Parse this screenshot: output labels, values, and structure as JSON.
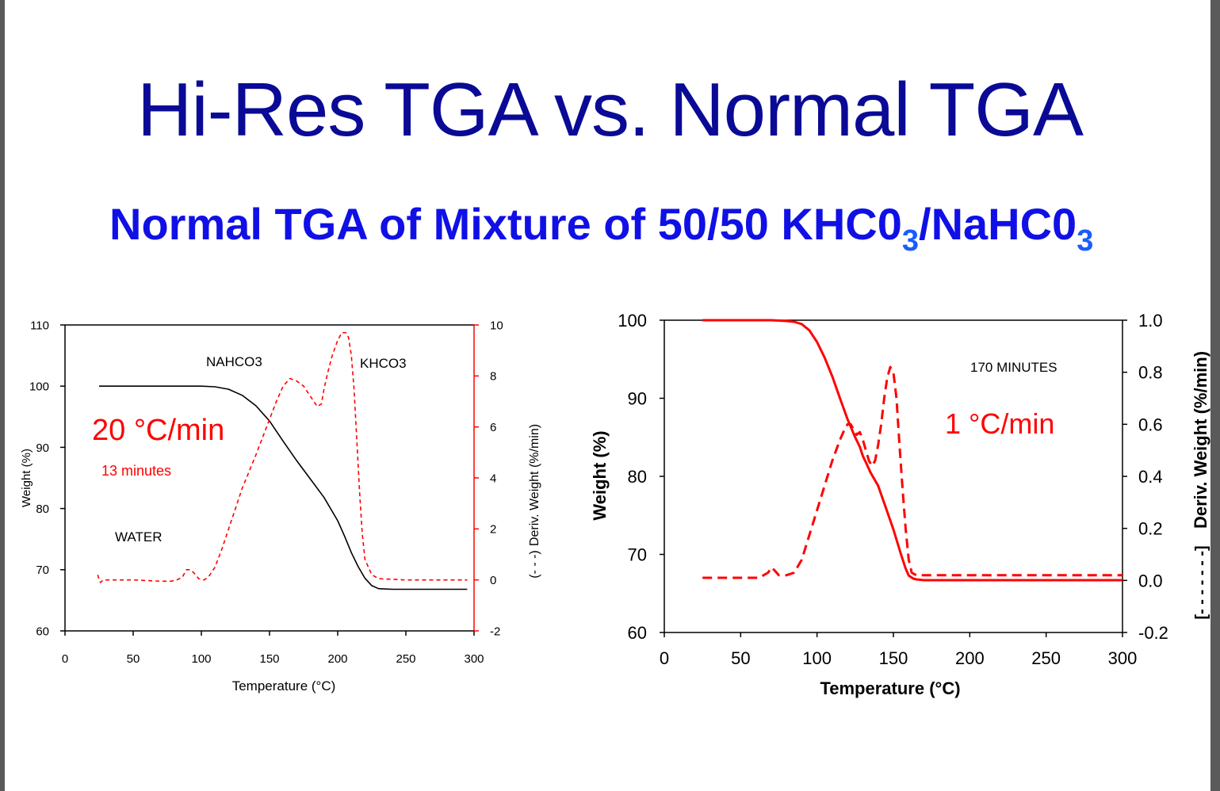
{
  "title": "Hi-Res TGA vs. Normal TGA",
  "subtitle": {
    "main": "Normal TGA of Mixture of 50/50 KHC0",
    "sub1": "3",
    "mid": "/NaHC0",
    "sub2": "3"
  },
  "colors": {
    "title": "#0a0a96",
    "subtitle": "#1010e6",
    "deriv": "#ff0000",
    "weight_left": "#000000",
    "weight_right": "#ff0000"
  },
  "chart_data": [
    {
      "type": "line",
      "xlabel": "Temperature (°C)",
      "ylabel": "Weight (%)",
      "y2label": "Deriv. Weight (%/min)",
      "xlim": [
        0,
        300
      ],
      "ylim": [
        60,
        110
      ],
      "y2lim": [
        -2,
        10
      ],
      "xticks": [
        "0",
        "50",
        "100",
        "150",
        "200",
        "250",
        "300"
      ],
      "yticks": [
        "60",
        "70",
        "80",
        "90",
        "100",
        "110"
      ],
      "y2ticks": [
        "-2",
        "0",
        "2",
        "4",
        "6",
        "8",
        "10"
      ],
      "annotations": {
        "rate": "20 °C/min",
        "time": "13 minutes",
        "water": "WATER",
        "nahco3": "NAHCO3",
        "khco3": "KHCO3"
      },
      "series": [
        {
          "axis": "left",
          "style": "solid",
          "x": [
            25,
            50,
            80,
            100,
            110,
            120,
            130,
            140,
            150,
            160,
            170,
            180,
            190,
            200,
            205,
            210,
            215,
            220,
            225,
            230,
            240,
            260,
            295
          ],
          "y": [
            100,
            100,
            100,
            100,
            99.9,
            99.5,
            98.5,
            96.8,
            94.3,
            91.0,
            87.8,
            84.8,
            81.8,
            78.0,
            75.5,
            72.8,
            70.5,
            68.6,
            67.4,
            66.9,
            66.8,
            66.8,
            66.8
          ]
        },
        {
          "axis": "right",
          "style": "dashed",
          "x": [
            24,
            25,
            26,
            28,
            30,
            50,
            70,
            78,
            82,
            86,
            89,
            92,
            95,
            98,
            102,
            105,
            110,
            115,
            120,
            130,
            140,
            150,
            155,
            160,
            165,
            170,
            175,
            180,
            185,
            188,
            190,
            193,
            196,
            200,
            203,
            206,
            208,
            210,
            212,
            214,
            216,
            218,
            220,
            225,
            230,
            250,
            270,
            295
          ],
          "y": [
            0.2,
            0.0,
            -0.1,
            0.0,
            0.0,
            0.0,
            -0.05,
            -0.05,
            0.0,
            0.1,
            0.4,
            0.4,
            0.25,
            0.05,
            0.0,
            0.1,
            0.5,
            1.2,
            2.0,
            3.6,
            4.9,
            6.3,
            7.0,
            7.6,
            7.9,
            7.8,
            7.6,
            7.2,
            6.8,
            6.9,
            7.5,
            8.2,
            8.8,
            9.4,
            9.7,
            9.7,
            9.5,
            8.8,
            7.5,
            5.5,
            3.5,
            1.8,
            0.8,
            0.2,
            0.05,
            0.0,
            0.0,
            0.0
          ]
        }
      ]
    },
    {
      "type": "line",
      "xlabel": "Temperature (°C)",
      "ylabel": "Weight (%)",
      "y2label": "Deriv. Weight (%/min)",
      "xlim": [
        0,
        300
      ],
      "ylim": [
        60,
        100
      ],
      "y2lim": [
        -0.2,
        1.0
      ],
      "xticks": [
        "0",
        "50",
        "100",
        "150",
        "200",
        "250",
        "300"
      ],
      "yticks": [
        "60",
        "70",
        "80",
        "90",
        "100"
      ],
      "y2ticks": [
        "-0.2",
        "0.0",
        "0.2",
        "0.4",
        "0.6",
        "0.8",
        "1.0"
      ],
      "annotations": {
        "rate": "1 °C/min",
        "time": "170 MINUTES"
      },
      "series": [
        {
          "axis": "left",
          "style": "solid",
          "x": [
            25,
            50,
            70,
            80,
            85,
            90,
            95,
            100,
            105,
            110,
            115,
            120,
            125,
            128,
            130,
            132,
            135,
            140,
            145,
            150,
            155,
            158,
            160,
            163,
            165,
            170,
            200,
            250,
            300
          ],
          "y": [
            100,
            100,
            100,
            99.9,
            99.8,
            99.5,
            98.7,
            97.2,
            95.2,
            92.8,
            90.0,
            87.3,
            85.0,
            83.8,
            82.6,
            81.8,
            80.5,
            78.8,
            76.0,
            73.2,
            70.0,
            68.2,
            67.3,
            66.9,
            66.8,
            66.7,
            66.7,
            66.7,
            66.7
          ]
        },
        {
          "axis": "right",
          "style": "dashed",
          "x": [
            25,
            50,
            62,
            68,
            70,
            72,
            75,
            80,
            85,
            90,
            100,
            110,
            115,
            118,
            120,
            122,
            124,
            126,
            128,
            130,
            132,
            134,
            136,
            138,
            140,
            142,
            144,
            146,
            148,
            150,
            152,
            154,
            156,
            158,
            160,
            162,
            165,
            170,
            200,
            300
          ],
          "y": [
            0.01,
            0.01,
            0.01,
            0.03,
            0.05,
            0.04,
            0.02,
            0.02,
            0.03,
            0.08,
            0.27,
            0.46,
            0.54,
            0.58,
            0.6,
            0.6,
            0.58,
            0.56,
            0.57,
            0.54,
            0.5,
            0.46,
            0.44,
            0.46,
            0.52,
            0.6,
            0.7,
            0.78,
            0.82,
            0.8,
            0.7,
            0.52,
            0.35,
            0.2,
            0.08,
            0.03,
            0.02,
            0.02,
            0.02,
            0.02
          ]
        }
      ]
    }
  ]
}
